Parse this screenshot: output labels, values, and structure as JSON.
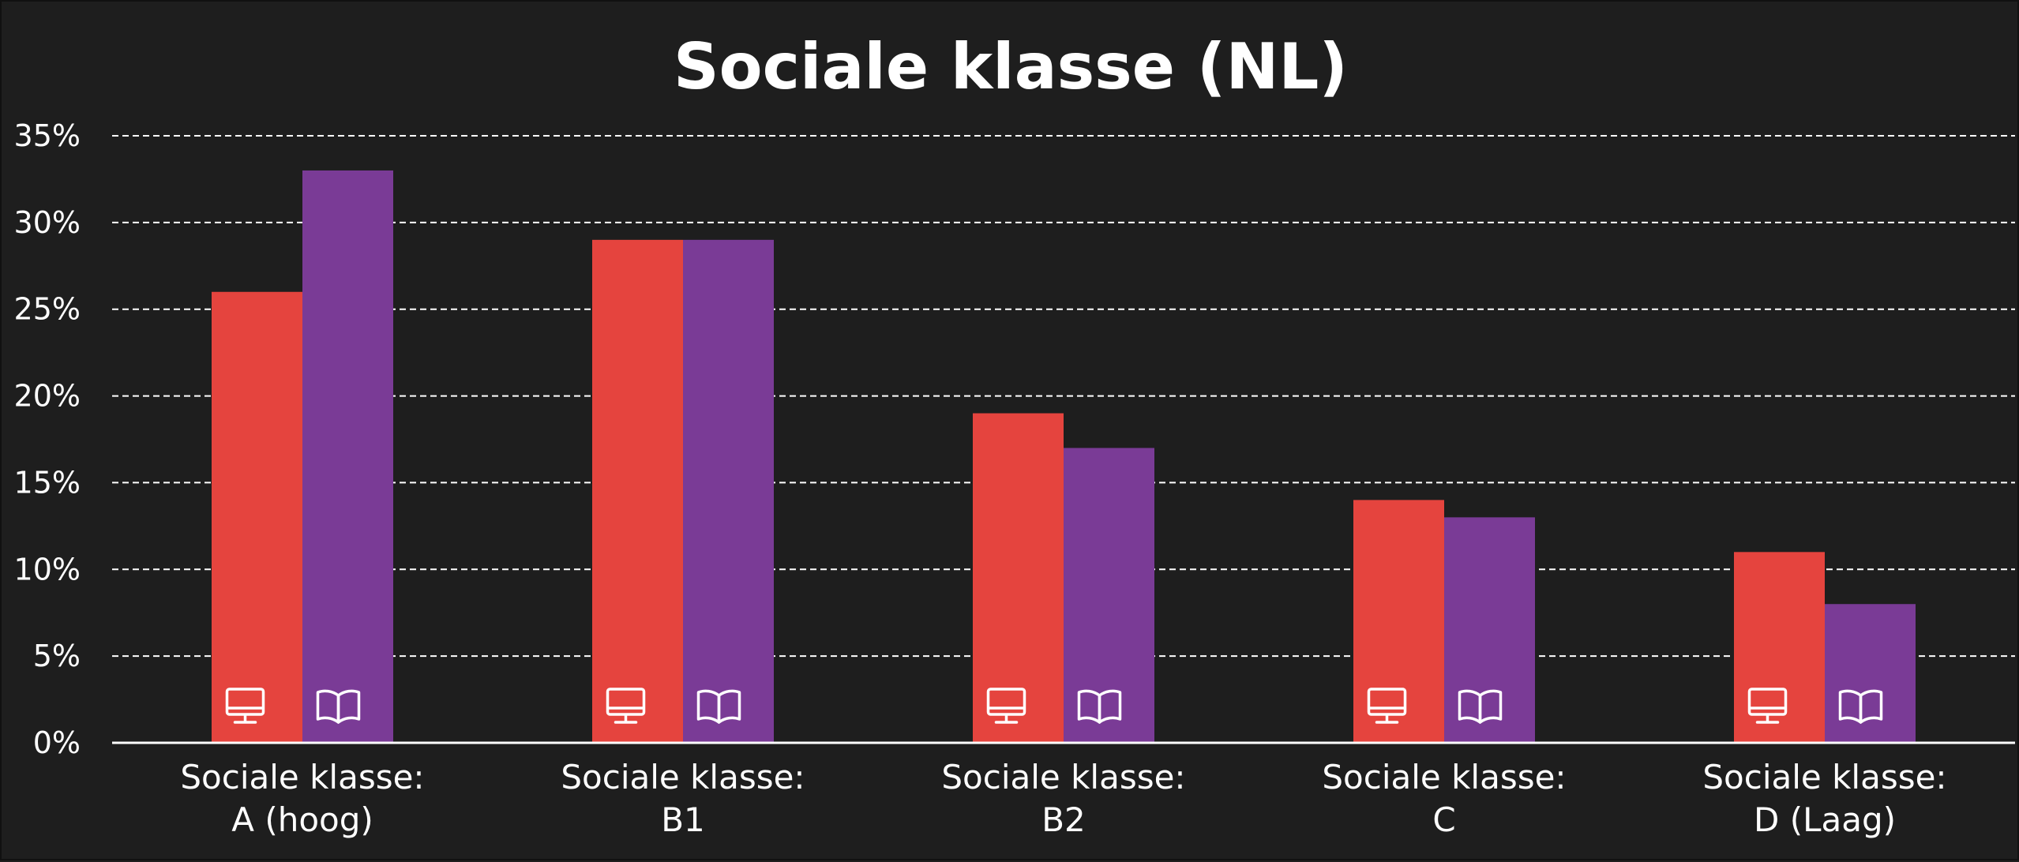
{
  "chart_data": {
    "type": "bar",
    "title": "Sociale klasse (NL)",
    "xlabel": "",
    "ylabel": "",
    "ylim": [
      0,
      35
    ],
    "yticks": [
      "0%",
      "5%",
      "10%",
      "15%",
      "20%",
      "25%",
      "30%",
      "35%"
    ],
    "grid": true,
    "categories": [
      [
        "Sociale klasse:",
        "A (hoog)"
      ],
      [
        "Sociale klasse:",
        "B1"
      ],
      [
        "Sociale klasse:",
        "B2"
      ],
      [
        "Sociale klasse:",
        "C"
      ],
      [
        "Sociale klasse:",
        "D (Laag)"
      ]
    ],
    "series": [
      {
        "icon": "monitor-icon",
        "color": "#e5443e",
        "values": [
          26,
          29,
          19,
          14,
          11
        ]
      },
      {
        "icon": "open-book-icon",
        "color": "#7a3b96",
        "values": [
          33,
          29,
          17,
          13,
          8
        ]
      }
    ],
    "colors": {
      "background": "#1e1e1e",
      "text": "#ffffff",
      "grid": "#ffffff"
    }
  }
}
